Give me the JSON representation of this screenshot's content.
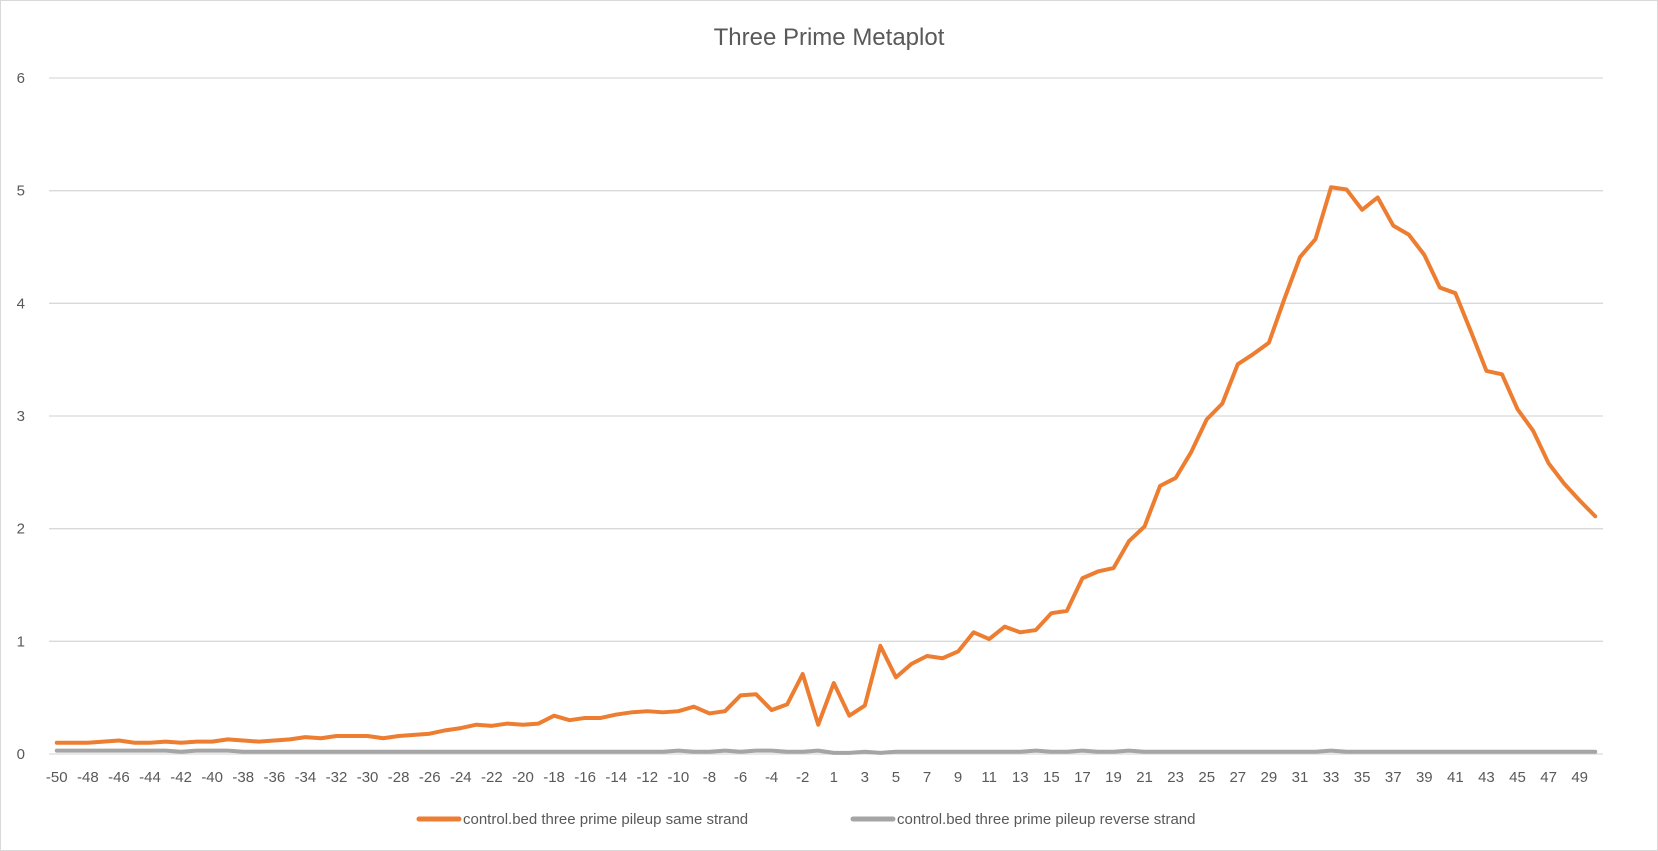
{
  "chart_data": {
    "type": "line",
    "title": "Three Prime Metaplot",
    "xlabel": "",
    "ylabel": "",
    "ylim": [
      0,
      6
    ],
    "y_ticks": [
      0,
      1,
      2,
      3,
      4,
      5,
      6
    ],
    "grid": "horizontal",
    "legend_position": "bottom",
    "x": [
      -50,
      -49,
      -48,
      -47,
      -46,
      -45,
      -44,
      -43,
      -42,
      -41,
      -40,
      -39,
      -38,
      -37,
      -36,
      -35,
      -34,
      -33,
      -32,
      -31,
      -30,
      -29,
      -28,
      -27,
      -26,
      -25,
      -24,
      -23,
      -22,
      -21,
      -20,
      -19,
      -18,
      -17,
      -16,
      -15,
      -14,
      -13,
      -12,
      -11,
      -10,
      -9,
      -8,
      -7,
      -6,
      -5,
      -4,
      -3,
      -2,
      -1,
      1,
      2,
      3,
      4,
      5,
      6,
      7,
      8,
      9,
      10,
      11,
      12,
      13,
      14,
      15,
      16,
      17,
      18,
      19,
      20,
      21,
      22,
      23,
      24,
      25,
      26,
      27,
      28,
      29,
      30,
      31,
      32,
      33,
      34,
      35,
      36,
      37,
      38,
      39,
      40,
      41,
      42,
      43,
      44,
      45,
      46,
      47,
      48,
      49,
      50
    ],
    "x_tick_labels": [
      "-50",
      "-48",
      "-46",
      "-44",
      "-42",
      "-40",
      "-38",
      "-36",
      "-34",
      "-32",
      "-30",
      "-28",
      "-26",
      "-24",
      "-22",
      "-20",
      "-18",
      "-16",
      "-14",
      "-12",
      "-10",
      "-8",
      "-6",
      "-4",
      "-2",
      "1",
      "3",
      "5",
      "7",
      "9",
      "11",
      "13",
      "15",
      "17",
      "19",
      "21",
      "23",
      "25",
      "27",
      "29",
      "31",
      "33",
      "35",
      "37",
      "39",
      "41",
      "43",
      "45",
      "47",
      "49"
    ],
    "series": [
      {
        "name": "control.bed three prime pileup same strand",
        "color": "#ED7D31",
        "values": [
          0.1,
          0.1,
          0.1,
          0.11,
          0.12,
          0.1,
          0.1,
          0.11,
          0.1,
          0.11,
          0.11,
          0.13,
          0.12,
          0.11,
          0.12,
          0.13,
          0.15,
          0.14,
          0.16,
          0.16,
          0.16,
          0.14,
          0.16,
          0.17,
          0.18,
          0.21,
          0.23,
          0.26,
          0.25,
          0.27,
          0.26,
          0.27,
          0.34,
          0.3,
          0.32,
          0.32,
          0.35,
          0.37,
          0.38,
          0.37,
          0.38,
          0.42,
          0.36,
          0.38,
          0.52,
          0.53,
          0.39,
          0.44,
          0.71,
          0.26,
          0.63,
          0.34,
          0.43,
          0.96,
          0.68,
          0.8,
          0.87,
          0.85,
          0.91,
          1.08,
          1.02,
          1.13,
          1.08,
          1.1,
          1.25,
          1.27,
          1.56,
          1.62,
          1.65,
          1.89,
          2.02,
          2.38,
          2.45,
          2.68,
          2.97,
          3.11,
          3.46,
          3.55,
          3.65,
          4.04,
          4.41,
          4.57,
          5.03,
          5.01,
          4.83,
          4.94,
          4.69,
          4.61,
          4.43,
          4.14,
          4.09,
          3.75,
          3.4,
          3.37,
          3.06,
          2.87,
          2.58,
          2.4,
          2.25,
          2.11
        ]
      },
      {
        "name": "control.bed three prime pileup reverse strand",
        "color": "#A5A5A5",
        "values": [
          0.03,
          0.03,
          0.03,
          0.03,
          0.03,
          0.03,
          0.03,
          0.03,
          0.02,
          0.03,
          0.03,
          0.03,
          0.02,
          0.02,
          0.02,
          0.02,
          0.02,
          0.02,
          0.02,
          0.02,
          0.02,
          0.02,
          0.02,
          0.02,
          0.02,
          0.02,
          0.02,
          0.02,
          0.02,
          0.02,
          0.02,
          0.02,
          0.02,
          0.02,
          0.02,
          0.02,
          0.02,
          0.02,
          0.02,
          0.02,
          0.03,
          0.02,
          0.02,
          0.03,
          0.02,
          0.03,
          0.03,
          0.02,
          0.02,
          0.03,
          0.01,
          0.01,
          0.02,
          0.01,
          0.02,
          0.02,
          0.02,
          0.02,
          0.02,
          0.02,
          0.02,
          0.02,
          0.02,
          0.03,
          0.02,
          0.02,
          0.03,
          0.02,
          0.02,
          0.03,
          0.02,
          0.02,
          0.02,
          0.02,
          0.02,
          0.02,
          0.02,
          0.02,
          0.02,
          0.02,
          0.02,
          0.02,
          0.03,
          0.02,
          0.02,
          0.02,
          0.02,
          0.02,
          0.02,
          0.02,
          0.02,
          0.02,
          0.02,
          0.02,
          0.02,
          0.02,
          0.02,
          0.02,
          0.02,
          0.02
        ]
      }
    ]
  }
}
